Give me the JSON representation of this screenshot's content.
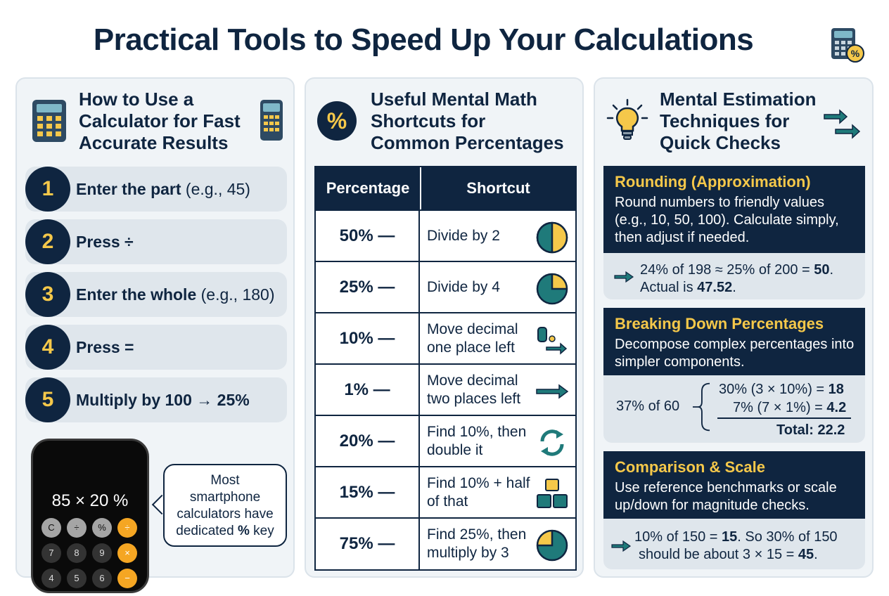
{
  "title": "Practical Tools to Speed Up Your Calculations",
  "colors": {
    "navy": "#0f2540",
    "yellow": "#f5c84a",
    "teal": "#1f7a7a",
    "panel_bg": "#f0f4f7"
  },
  "icons": [
    "calculator-percent-icon",
    "calculator-icon",
    "percent-icon",
    "lightbulb-icon",
    "arrows-icon",
    "pie-icon",
    "arrow-icon",
    "refresh-icon",
    "blocks-icon"
  ],
  "panel1": {
    "title": [
      "How to Use a",
      "Calculator for Fast",
      "Accurate Results"
    ],
    "steps": [
      {
        "num": "1",
        "bold": "Enter the part",
        "rest": " (e.g., 45)"
      },
      {
        "num": "2",
        "bold": "Press ÷",
        "rest": ""
      },
      {
        "num": "3",
        "bold": "Enter the whole",
        "rest": " (e.g., 180)"
      },
      {
        "num": "4",
        "bold": "Press =",
        "rest": ""
      },
      {
        "num": "5",
        "bold": "Multiply by 100 → 25%",
        "rest": ""
      }
    ],
    "phone": {
      "display": "85 × 20 %",
      "keys_row1": [
        "C",
        "÷",
        "%",
        "÷"
      ],
      "keys_row2": [
        "7",
        "8",
        "9",
        "×"
      ],
      "keys_row3": [
        "4",
        "5",
        "6",
        "−"
      ]
    },
    "bubble": {
      "line1": "Most",
      "line2": "smartphone",
      "line3": "calculators have",
      "line4_pre": "dedicated ",
      "line4_bold": "%",
      "line4_post": " key"
    }
  },
  "panel2": {
    "title": [
      "Useful Mental Math",
      "Shortcuts for",
      "Common Percentages"
    ],
    "header": {
      "col1": "Percentage",
      "col2": "Shortcut"
    },
    "rows": [
      {
        "pct": "50% —",
        "shortcut": "Divide by 2",
        "icon": "pie-half-icon"
      },
      {
        "pct": "25% —",
        "shortcut": "Divide by 4",
        "icon": "pie-quarter-icon"
      },
      {
        "pct": "10% —",
        "shortcut": "Move decimal one place left",
        "icon": "decimal-shift-icon"
      },
      {
        "pct": "1% —",
        "shortcut": "Move decimal two places left",
        "icon": "arrow-right-icon"
      },
      {
        "pct": "20% —",
        "shortcut": "Find 10%, then double it",
        "icon": "refresh-icon"
      },
      {
        "pct": "15% —",
        "shortcut": "Find 10% + half of that",
        "icon": "blocks-icon"
      },
      {
        "pct": "75% —",
        "shortcut": "Find 25%, then multiply by 3",
        "icon": "pie-three-quarter-icon"
      }
    ]
  },
  "panel3": {
    "title": [
      "Mental Estimation",
      "Techniques for",
      "Quick Checks"
    ],
    "cards": [
      {
        "heading": "Rounding (Approximation)",
        "desc": "Round numbers to friendly values (e.g., 10, 50, 100). Calculate simply, then adjust if needed.",
        "ex1_pre": "24% of 198 ≈ 25% of 200 = ",
        "ex1_bold": "50",
        "ex1_post": ".",
        "ex2_pre": "Actual is ",
        "ex2_bold": "47.52",
        "ex2_post": "."
      },
      {
        "heading": "Breaking Down Percentages",
        "desc": "Decompose complex percentages into simpler components.",
        "left": "37% of 60",
        "line1_pre": "30% (3 × 10%) = ",
        "line1_bold": "18",
        "line2_pre": "7% (7 × 1%) = ",
        "line2_bold": "4.2",
        "total": "Total: 22.2"
      },
      {
        "heading": "Comparison & Scale",
        "desc": "Use reference benchmarks or scale up/down for magnitude checks.",
        "ex1_pre": "10% of 150 = ",
        "ex1_bold": "15",
        "ex1_post": ". So 30% of 150",
        "ex2_pre": "should be about 3 × 15 = ",
        "ex2_bold": "45",
        "ex2_post": "."
      }
    ]
  }
}
